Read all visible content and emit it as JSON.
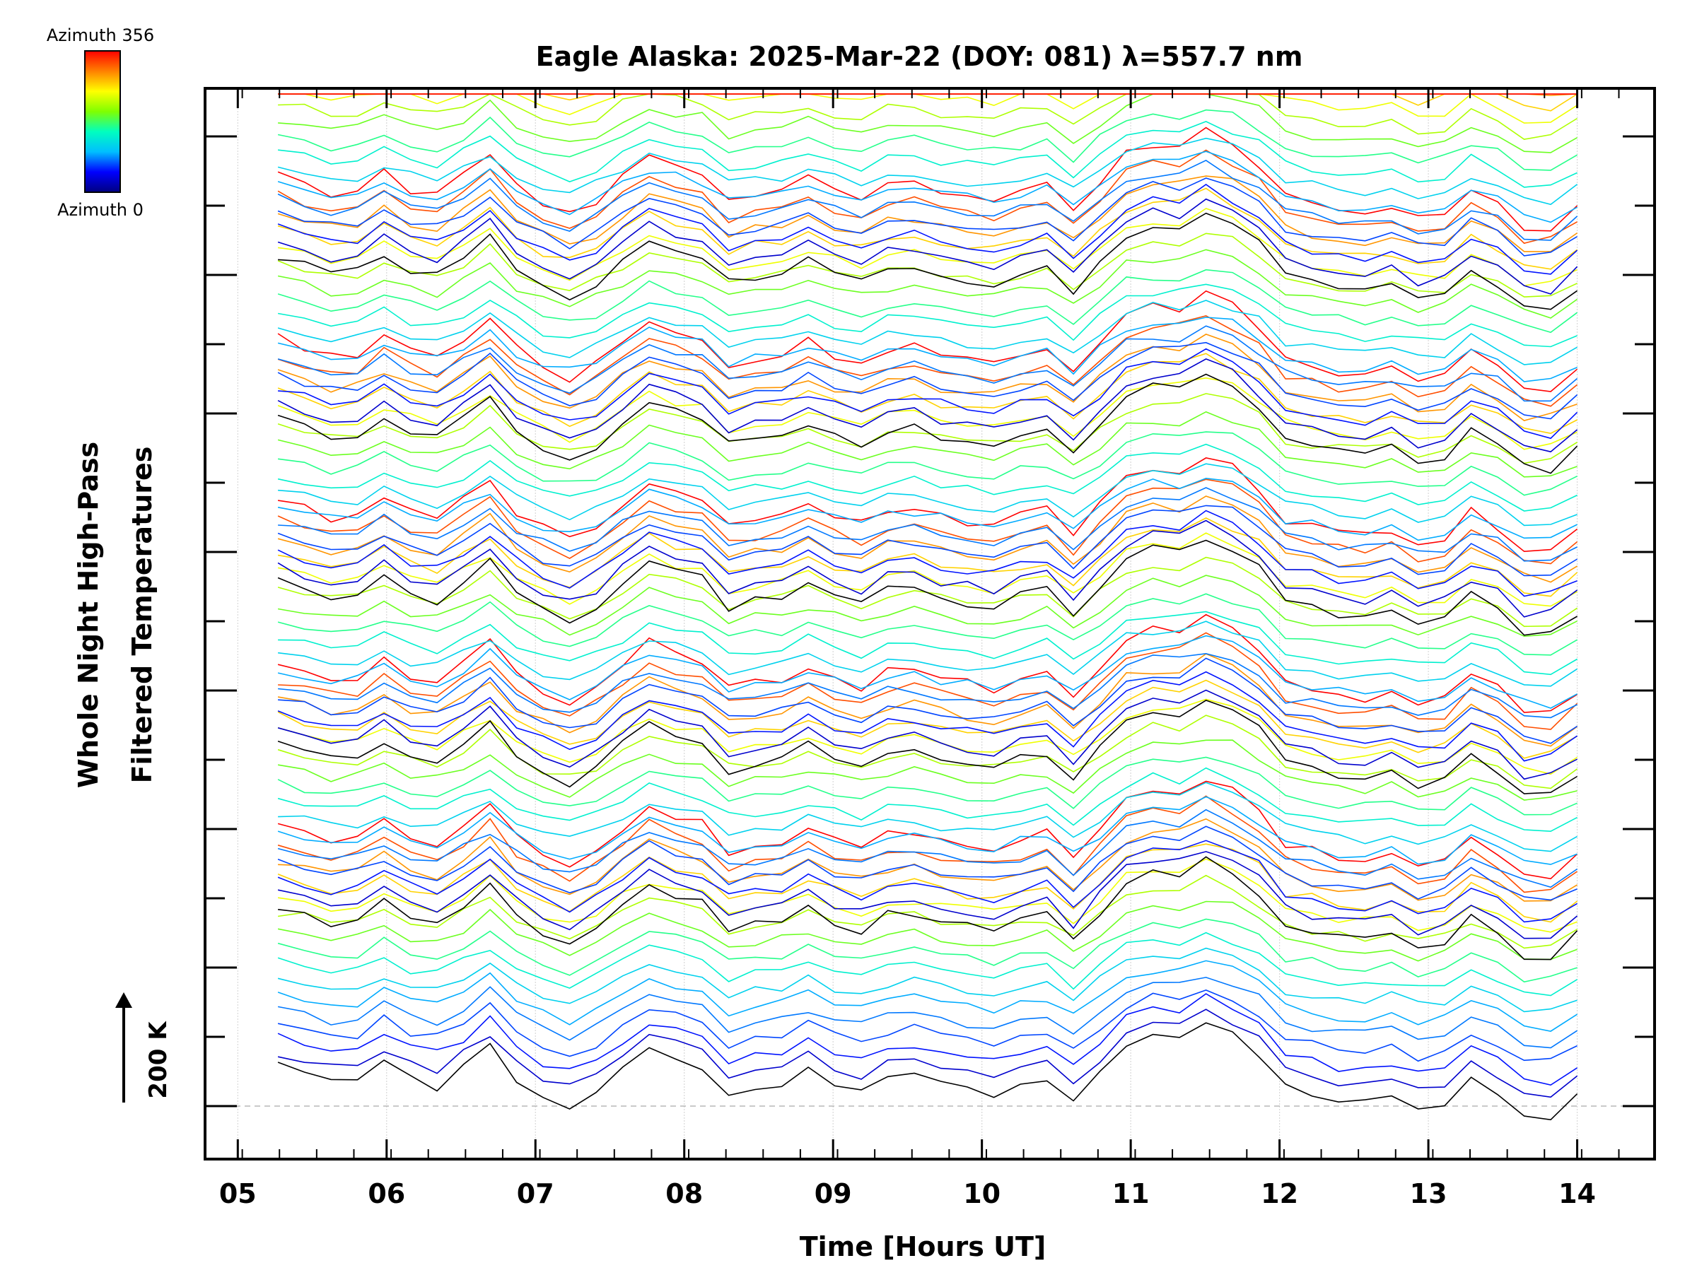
{
  "chart_data": {
    "type": "line",
    "title": "Eagle Alaska: 2025-Mar-22 (DOY: 081) λ=557.7 nm",
    "xlabel": "Time [Hours UT]",
    "ylabel_line1": "Whole Night High-Pass",
    "ylabel_line2": "Filtered Temperatures",
    "x_tick_labels": [
      "05",
      "06",
      "07",
      "08",
      "09",
      "10",
      "11",
      "12",
      "13",
      "14"
    ],
    "x_ticks": [
      5,
      6,
      7,
      8,
      9,
      10,
      11,
      12,
      13,
      14
    ],
    "xlim": [
      4.78,
      14.52
    ],
    "data_start_hour": 5.27,
    "data_end_hour": 14.0,
    "scale_bar_label": "200 K",
    "colorbar": {
      "top_label": "Azimuth 356",
      "bottom_label": "Azimuth 0",
      "colors": [
        "#000080",
        "#0000ff",
        "#00bfff",
        "#00ffbf",
        "#80ff00",
        "#ffff00",
        "#ff8000",
        "#ff0000"
      ]
    },
    "grid": "vertical dotted at each hour",
    "series": [
      {
        "azimuth_group": 0,
        "baseline_offset_K": 0,
        "color": "#000000",
        "values": [
          5.0,
          3.1,
          1.0,
          1.5,
          6.0,
          2.0,
          0.5,
          4.8,
          10.2,
          2.4,
          -1.6,
          -4.2,
          -1.0,
          4.5,
          9.6,
          7.2,
          5.5,
          -1.2,
          0.4,
          1.3,
          4.4,
          1.1,
          -0.8,
          2.7,
          3.4,
          1.2,
          0.0,
          -1.1,
          1.4,
          2.9,
          -3.4,
          3.7,
          10.6,
          12.9,
          12.3,
          15.8,
          12.8,
          8.1,
          0.4,
          -1.1,
          -2.9,
          -3.4,
          -1.7,
          -5.0,
          -3.7,
          2.2,
          -1.1,
          -6.6,
          -7.0,
          -2.1
        ]
      }
    ],
    "series_note": "~90 azimuth-offset traces, colored by azimuth along the colorbar; each trace is the filtered temperature vs time shifted vertically; scale bar = 200 K"
  }
}
